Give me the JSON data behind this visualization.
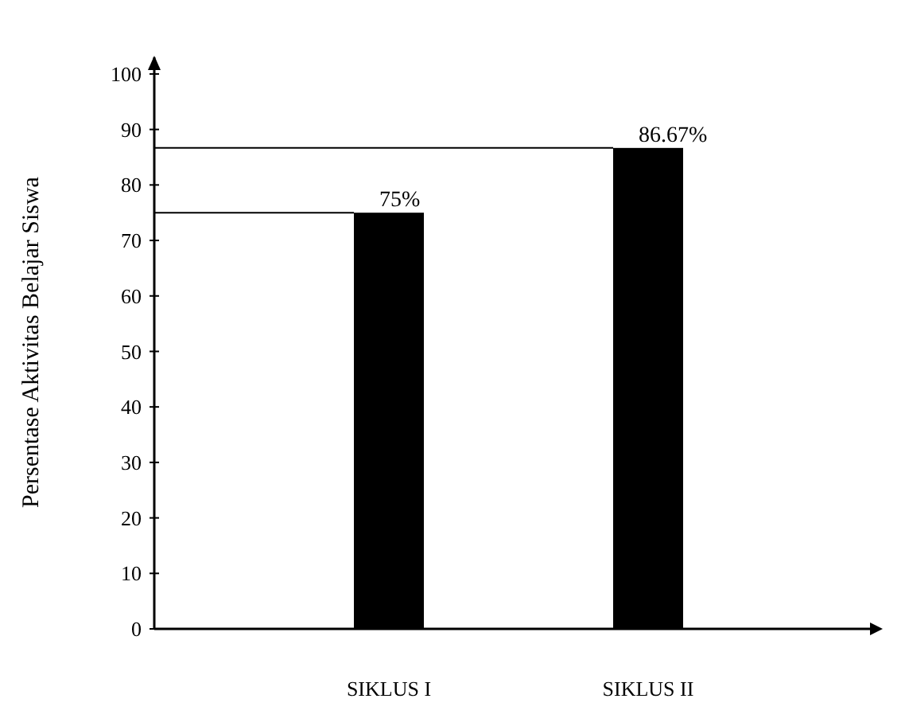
{
  "chart_data": {
    "type": "bar",
    "ylabel": "Persentase Aktivitas Belajar Siswa",
    "categories": [
      "SIKLUS I",
      "SIKLUS II"
    ],
    "values": [
      75,
      86.67
    ],
    "color": "#000000",
    "value_labels": [
      "75%",
      "86.67%"
    ],
    "ylim": [
      0,
      103
    ],
    "yticks": [
      0,
      10,
      20,
      30,
      40,
      50,
      60,
      70,
      80,
      90,
      100
    ],
    "ref_lines": [
      {
        "axis": "y",
        "value": 75,
        "color": "#000000"
      },
      {
        "axis": "y",
        "value": 86.67,
        "color": "#000000"
      }
    ],
    "grid": false
  }
}
